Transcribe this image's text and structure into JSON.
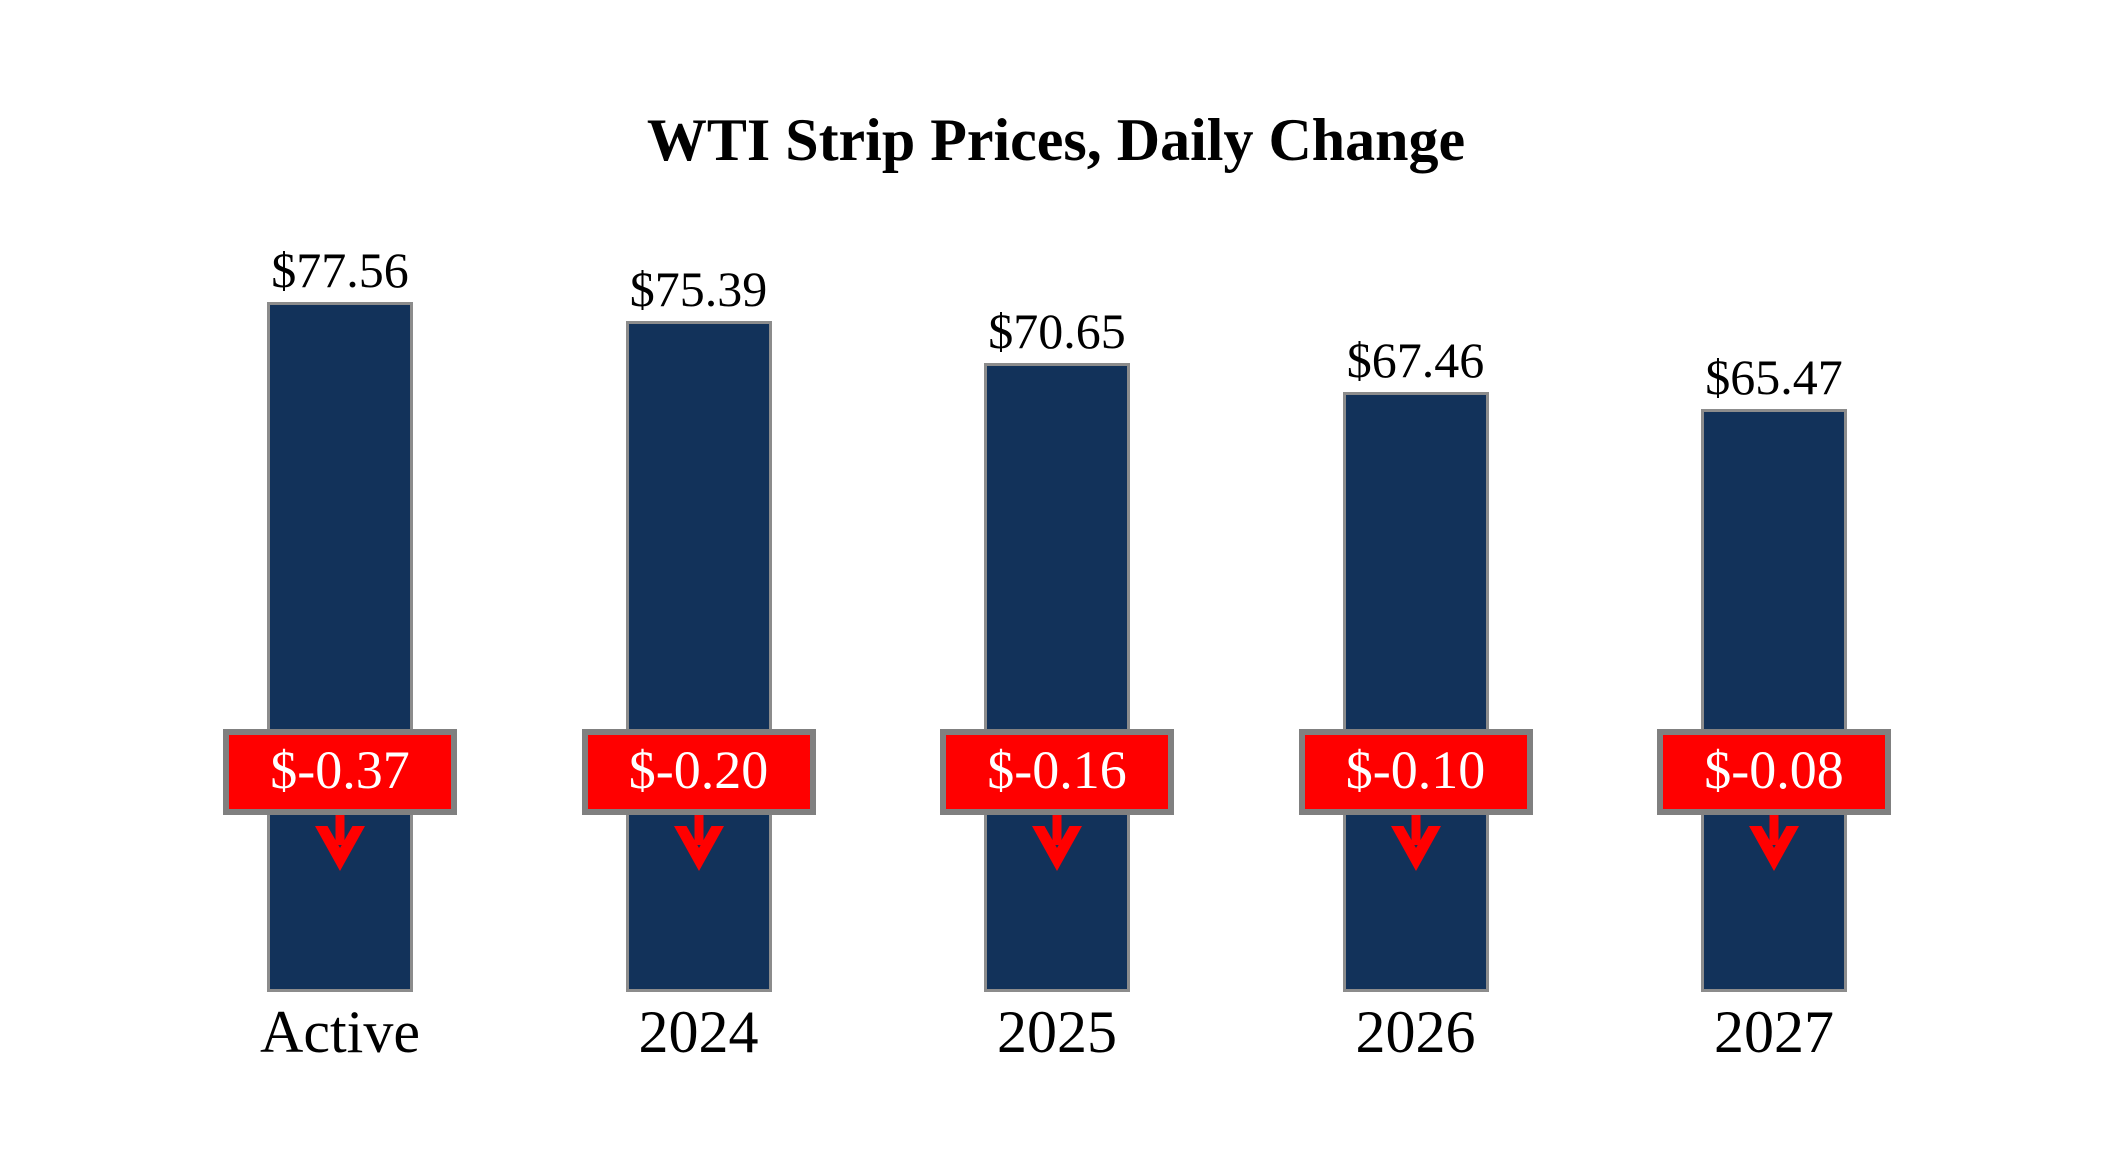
{
  "title": "WTI Strip Prices, Daily Change",
  "chart_data": {
    "type": "bar",
    "title": "WTI Strip Prices, Daily Change",
    "categories": [
      "Active",
      "2024",
      "2025",
      "2026",
      "2027"
    ],
    "series": [
      {
        "name": "WTI strip price",
        "values": [
          77.56,
          75.39,
          70.65,
          67.46,
          65.47
        ]
      },
      {
        "name": "Daily change",
        "values": [
          -0.37,
          -0.2,
          -0.16,
          -0.1,
          -0.08
        ]
      }
    ],
    "bars": [
      {
        "category": "Active",
        "price": 77.56,
        "price_label": "$77.56",
        "change": -0.37,
        "change_label": "$-0.37",
        "direction": "down"
      },
      {
        "category": "2024",
        "price": 75.39,
        "price_label": "$75.39",
        "change": -0.2,
        "change_label": "$-0.20",
        "direction": "down"
      },
      {
        "category": "2025",
        "price": 70.65,
        "price_label": "$70.65",
        "change": -0.16,
        "change_label": "$-0.16",
        "direction": "down"
      },
      {
        "category": "2026",
        "price": 67.46,
        "price_label": "$67.46",
        "change": -0.1,
        "change_label": "$-0.10",
        "direction": "down"
      },
      {
        "category": "2027",
        "price": 65.47,
        "price_label": "$65.47",
        "change": -0.08,
        "change_label": "$-0.08",
        "direction": "down"
      }
    ],
    "ylim": [
      0,
      77.56
    ],
    "baseline": 0,
    "axes_visible": false,
    "gridlines": false,
    "legend": "none",
    "value_labels_position": "above-bars",
    "change_labels_position": "overlay-boxes",
    "category_labels_position": "below-bars"
  },
  "colors": {
    "background": "#FFFFFF",
    "bar_fill": "#12325A",
    "bar_border": "#8C8C8C",
    "change_box_fill": "#FF0000",
    "change_box_border": "#808080",
    "change_text": "#FFFFFF",
    "arrow": "#FF0000",
    "text": "#000000"
  }
}
